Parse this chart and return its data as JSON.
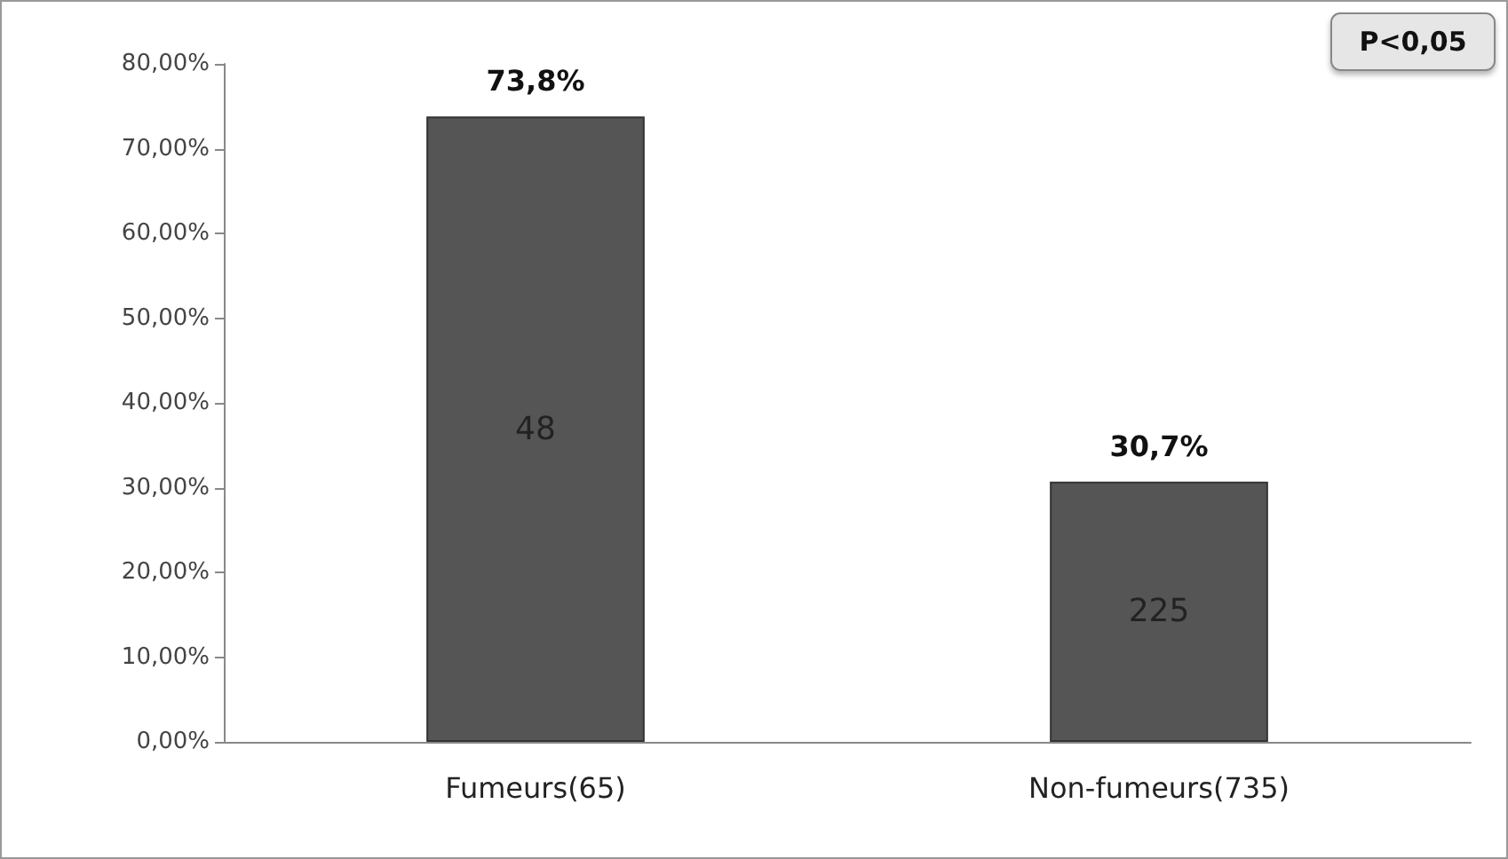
{
  "chart_data": {
    "type": "bar",
    "categories": [
      "Fumeurs(65)",
      "Non-fumeurs(735)"
    ],
    "values": [
      73.8,
      30.7
    ],
    "color": "#555555",
    "value_labels": [
      "73,8%",
      "30,7%"
    ],
    "ylim": [
      0,
      80
    ],
    "yticks": [
      {
        "value": 0,
        "label": "0,00%"
      },
      {
        "value": 10,
        "label": "10,00%"
      },
      {
        "value": 20,
        "label": "20,00%"
      },
      {
        "value": 30,
        "label": "30,00%"
      },
      {
        "value": 40,
        "label": "40,00%"
      },
      {
        "value": 50,
        "label": "50,00%"
      },
      {
        "value": 60,
        "label": "60,00%"
      },
      {
        "value": 70,
        "label": "70,00%"
      },
      {
        "value": 80,
        "label": "80,00%"
      }
    ],
    "annotations": [
      "48",
      "225",
      "P<0,05"
    ],
    "grid": false
  }
}
